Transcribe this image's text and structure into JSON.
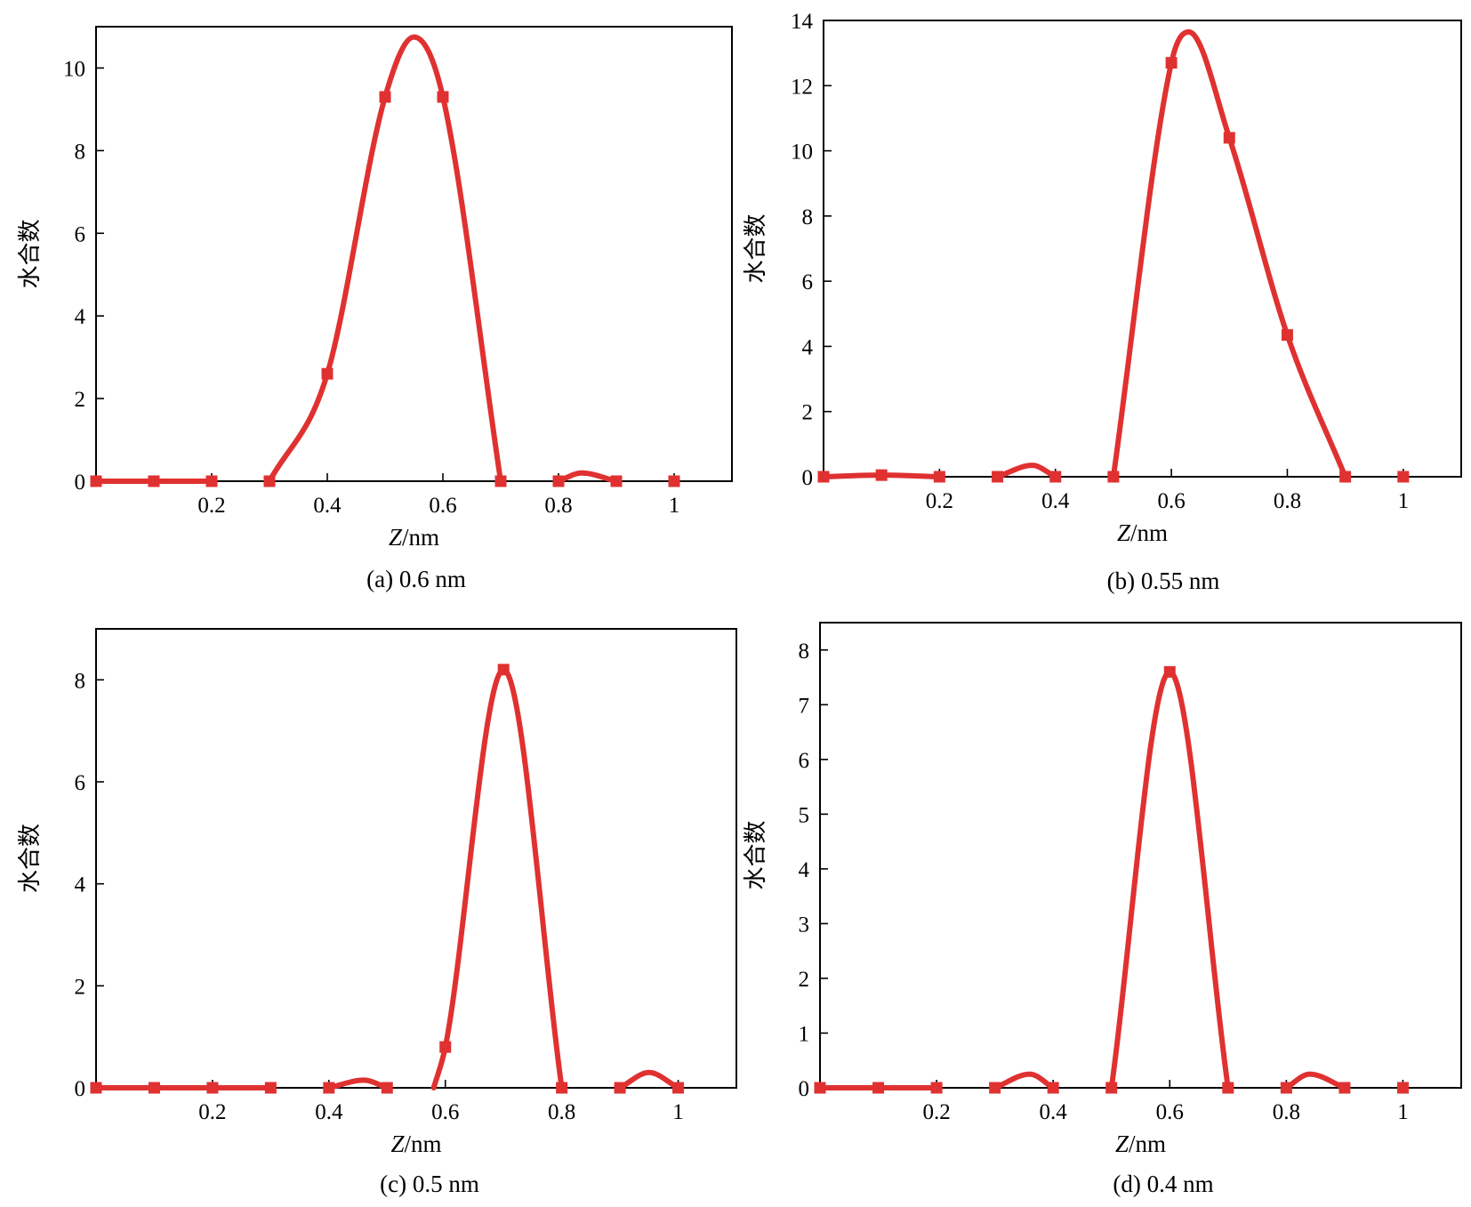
{
  "chart_data": [
    {
      "type": "line",
      "caption": "(a) 0.6 nm",
      "xlabel": {
        "italic": "Z",
        "rest": "/nm"
      },
      "ylabel": "水合数",
      "xlim": [
        0,
        1.1
      ],
      "ylim": [
        0,
        11
      ],
      "xticks": [
        0.2,
        0.4,
        0.6,
        0.8,
        1
      ],
      "xtick_labels": [
        "0.2",
        "0.4",
        "0.6",
        "0.8",
        "1"
      ],
      "yticks": [
        0,
        2,
        4,
        6,
        8,
        10
      ],
      "ytick_labels": [
        "0",
        "2",
        "4",
        "6",
        "8",
        "10"
      ],
      "series_color": "#e03131",
      "segments": [
        {
          "points": [
            [
              0,
              0
            ],
            [
              0.1,
              0
            ],
            [
              0.2,
              0
            ]
          ],
          "marker_x": [
            0,
            0.1,
            0.2
          ]
        },
        {
          "points": [
            [
              0.3,
              0
            ],
            [
              0.4,
              2.6
            ],
            [
              0.5,
              9.3
            ],
            [
              0.55,
              10.75
            ],
            [
              0.6,
              9.3
            ],
            [
              0.7,
              0
            ]
          ],
          "marker_x": [
            0.3,
            0.4,
            0.5,
            0.6,
            0.7
          ]
        },
        {
          "points": [
            [
              0.8,
              0
            ],
            [
              0.84,
              0.2
            ],
            [
              0.9,
              0
            ]
          ],
          "marker_x": [
            0.8,
            0.9
          ]
        },
        {
          "points": [
            [
              1.0,
              0
            ]
          ],
          "marker_x": [
            1.0
          ]
        }
      ]
    },
    {
      "type": "line",
      "caption": "(b) 0.55 nm",
      "xlabel": {
        "italic": "Z",
        "rest": "/nm"
      },
      "ylabel": "水合数",
      "xlim": [
        0,
        1.1
      ],
      "ylim": [
        0,
        14
      ],
      "xticks": [
        0.2,
        0.4,
        0.6,
        0.8,
        1
      ],
      "xtick_labels": [
        "0.2",
        "0.4",
        "0.6",
        "0.8",
        "1"
      ],
      "yticks": [
        0,
        2,
        4,
        6,
        8,
        10,
        12,
        14
      ],
      "ytick_labels": [
        "0",
        "2",
        "4",
        "6",
        "8",
        "10",
        "12",
        "14"
      ],
      "series_color": "#e03131",
      "segments": [
        {
          "points": [
            [
              0,
              0
            ],
            [
              0.1,
              0.05
            ],
            [
              0.2,
              0
            ]
          ],
          "marker_x": [
            0,
            0.1,
            0.2
          ]
        },
        {
          "points": [
            [
              0.3,
              0
            ],
            [
              0.36,
              0.35
            ],
            [
              0.4,
              0
            ]
          ],
          "marker_x": [
            0.3,
            0.4
          ]
        },
        {
          "points": [
            [
              0.5,
              0
            ],
            [
              0.6,
              12.7
            ],
            [
              0.63,
              13.65
            ],
            [
              0.7,
              10.4
            ],
            [
              0.8,
              4.35
            ],
            [
              0.9,
              0
            ]
          ],
          "marker_x": [
            0.5,
            0.6,
            0.7,
            0.8,
            0.9
          ]
        },
        {
          "points": [
            [
              1.0,
              0
            ]
          ],
          "marker_x": [
            1.0
          ]
        }
      ]
    },
    {
      "type": "line",
      "caption": "(c) 0.5 nm",
      "xlabel": {
        "italic": "Z",
        "rest": "/nm"
      },
      "ylabel": "水合数",
      "xlim": [
        0,
        1.1
      ],
      "ylim": [
        0,
        9
      ],
      "xticks": [
        0.2,
        0.4,
        0.6,
        0.8,
        1
      ],
      "xtick_labels": [
        "0.2",
        "0.4",
        "0.6",
        "0.8",
        "1"
      ],
      "yticks": [
        0,
        2,
        4,
        6,
        8
      ],
      "ytick_labels": [
        "0",
        "2",
        "4",
        "6",
        "8"
      ],
      "series_color": "#e03131",
      "segments": [
        {
          "points": [
            [
              0,
              0
            ],
            [
              0.1,
              0
            ],
            [
              0.2,
              0
            ],
            [
              0.3,
              0
            ]
          ],
          "marker_x": [
            0,
            0.1,
            0.2,
            0.3
          ]
        },
        {
          "points": [
            [
              0.4,
              0
            ],
            [
              0.46,
              0.15
            ],
            [
              0.5,
              0
            ]
          ],
          "marker_x": [
            0.4,
            0.5
          ]
        },
        {
          "points": [
            [
              0.58,
              0
            ],
            [
              0.6,
              0.8
            ],
            [
              0.7,
              8.2
            ],
            [
              0.8,
              0
            ]
          ],
          "marker_x": [
            0.6,
            0.7,
            0.8
          ]
        },
        {
          "points": [
            [
              0.9,
              0
            ],
            [
              0.95,
              0.3
            ],
            [
              1.0,
              0
            ]
          ],
          "marker_x": [
            0.9,
            1.0
          ]
        }
      ]
    },
    {
      "type": "line",
      "caption": "(d) 0.4 nm",
      "xlabel": {
        "italic": "Z",
        "rest": "/nm"
      },
      "ylabel": "水合数",
      "xlim": [
        0,
        1.1
      ],
      "ylim": [
        0,
        8.5
      ],
      "xticks": [
        0.2,
        0.4,
        0.6,
        0.8,
        1
      ],
      "xtick_labels": [
        "0.2",
        "0.4",
        "0.6",
        "0.8",
        "1"
      ],
      "yticks": [
        0,
        1,
        2,
        3,
        4,
        5,
        6,
        7,
        8
      ],
      "ytick_labels": [
        "0",
        "1",
        "2",
        "3",
        "4",
        "5",
        "6",
        "7",
        "8"
      ],
      "series_color": "#e03131",
      "segments": [
        {
          "points": [
            [
              0,
              0
            ],
            [
              0.1,
              0
            ],
            [
              0.2,
              0
            ]
          ],
          "marker_x": [
            0,
            0.1,
            0.2
          ]
        },
        {
          "points": [
            [
              0.3,
              0
            ],
            [
              0.36,
              0.25
            ],
            [
              0.4,
              0
            ]
          ],
          "marker_x": [
            0.3,
            0.4
          ]
        },
        {
          "points": [
            [
              0.5,
              0
            ],
            [
              0.6,
              7.6
            ],
            [
              0.7,
              0
            ]
          ],
          "marker_x": [
            0.5,
            0.6,
            0.7
          ]
        },
        {
          "points": [
            [
              0.8,
              0
            ],
            [
              0.84,
              0.25
            ],
            [
              0.9,
              0
            ]
          ],
          "marker_x": [
            0.8,
            0.9
          ]
        },
        {
          "points": [
            [
              1.0,
              0
            ]
          ],
          "marker_x": [
            1.0
          ]
        }
      ]
    }
  ]
}
